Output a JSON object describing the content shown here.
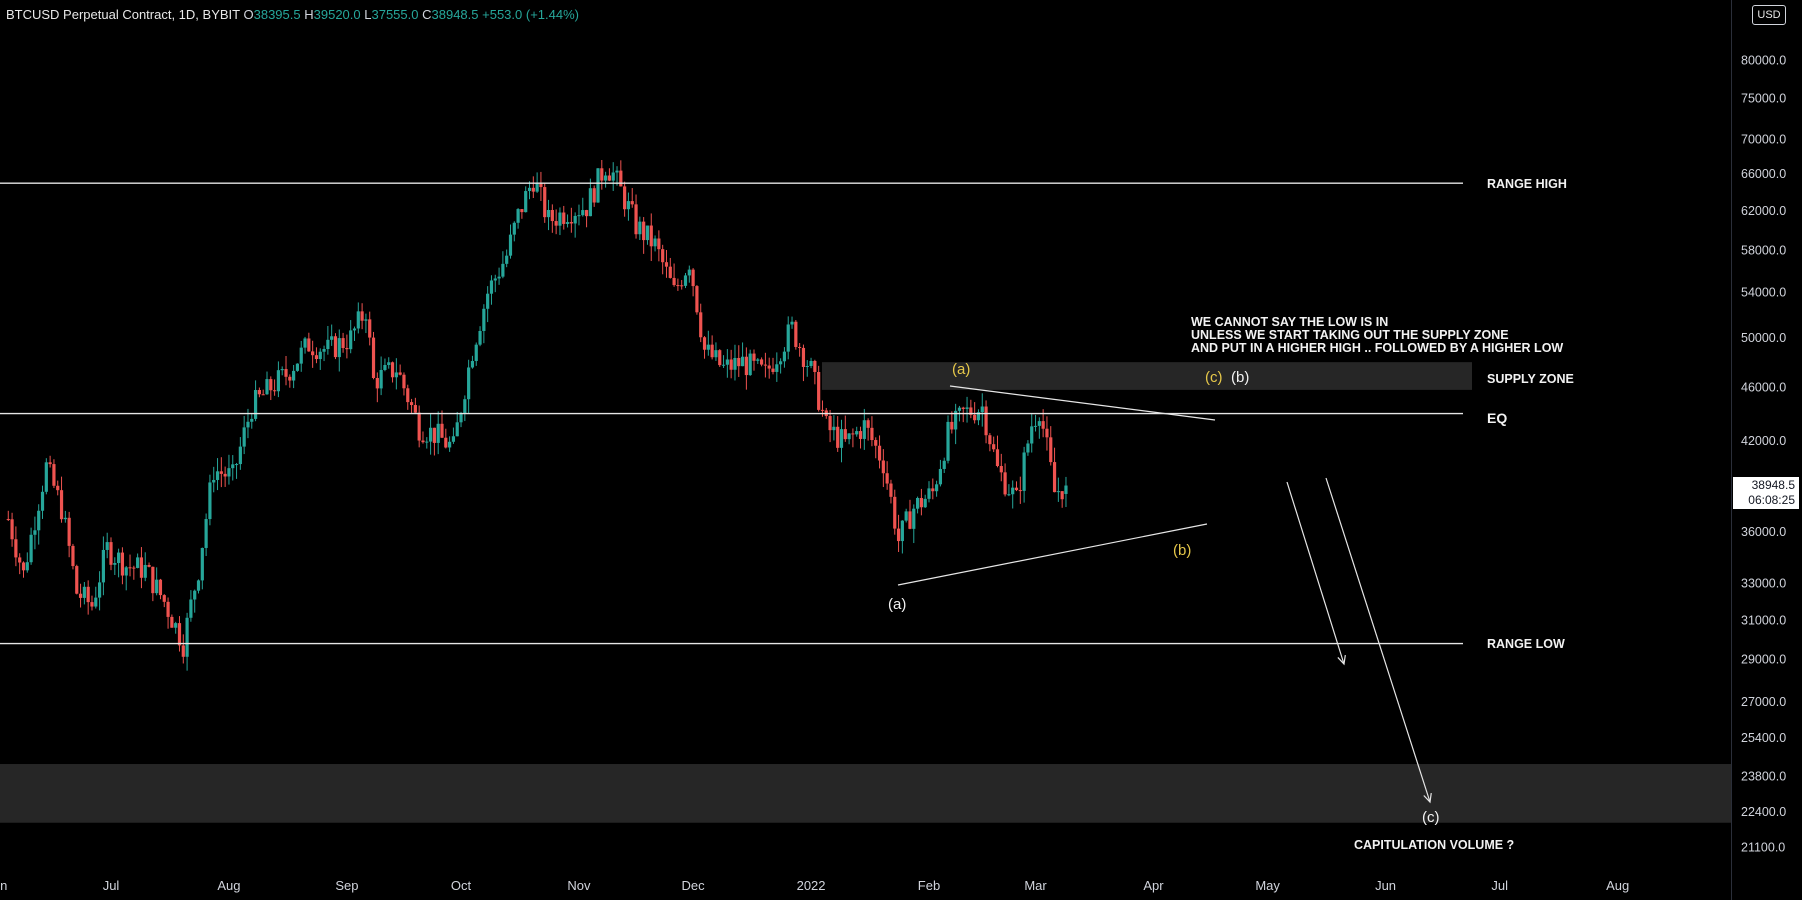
{
  "header": {
    "symbol": "BTCUSD Perpetual Contract, 1D, BYBIT",
    "o_label": "O",
    "o_value": "38395.5",
    "h_label": "H",
    "h_value": "39520.0",
    "l_label": "L",
    "l_value": "37555.0",
    "c_label": "C",
    "c_value": "38948.5",
    "change": "+553.0 (+1.44%)"
  },
  "currency_button": "USD",
  "price_tag": {
    "price": "38948.5",
    "countdown": "06:08:25"
  },
  "colors": {
    "up": "#26a69a",
    "down": "#ef5350",
    "line": "#e6e6e6",
    "zone": "#262626",
    "yellow": "#e6c84a"
  },
  "annotations": {
    "range_high": "RANGE HIGH",
    "supply_zone": "SUPPLY ZONE",
    "eq": "EQ",
    "range_low": "RANGE LOW",
    "capitulation": "CAPITULATION VOLUME ?",
    "note_line1": "WE CANNOT SAY THE LOW IS IN",
    "note_line2": "UNLESS WE START TAKING OUT THE SUPPLY ZONE",
    "note_line3": "AND PUT IN A HIGHER HIGH .. FOLLOWED BY A HIGHER LOW",
    "wave_a_yellow": "(a)",
    "wave_c_yellow": "(c)",
    "wave_b_white": "(b)",
    "wave_b_yellow": "(b)",
    "wave_a_white": "(a)",
    "wave_c_white": "(c)"
  },
  "chart_data": {
    "type": "candlestick",
    "title": "BTCUSD Perpetual Contract, 1D, BYBIT",
    "y_ticks": [
      80000,
      75000,
      70000,
      66000,
      62000,
      58000,
      54000,
      50000,
      46000,
      42000,
      36000,
      33000,
      31000,
      29000,
      27000,
      25400,
      23800,
      22400,
      21100
    ],
    "y_tick_labels": [
      "80000.0",
      "75000.0",
      "70000.0",
      "66000.0",
      "62000.0",
      "58000.0",
      "54000.0",
      "50000.0",
      "46000.0",
      "42000.0",
      "36000.0",
      "33000.0",
      "31000.0",
      "29000.0",
      "27000.0",
      "25400.0",
      "23800.0",
      "22400.0",
      "21100.0"
    ],
    "x_ticks": [
      "Jun",
      "Jul",
      "Aug",
      "Sep",
      "Oct",
      "Nov",
      "Dec",
      "2022",
      "Feb",
      "Mar",
      "Apr",
      "May",
      "Jun",
      "Jul",
      "Aug"
    ],
    "scale": "log",
    "levels": {
      "range_high": 65000,
      "eq": 44000,
      "range_low": 29800
    },
    "supply_zone": [
      45800,
      48000
    ],
    "capitulation_zone": [
      22000,
      24300
    ],
    "close_series": [
      [
        "2021-06-04",
        36800
      ],
      [
        "2021-06-08",
        33500
      ],
      [
        "2021-06-14",
        40200
      ],
      [
        "2021-06-18",
        37500
      ],
      [
        "2021-06-22",
        32500
      ],
      [
        "2021-06-26",
        31800
      ],
      [
        "2021-06-30",
        35000
      ],
      [
        "2021-07-05",
        34000
      ],
      [
        "2021-07-10",
        33800
      ],
      [
        "2021-07-15",
        32000
      ],
      [
        "2021-07-20",
        29800
      ],
      [
        "2021-07-24",
        33800
      ],
      [
        "2021-07-28",
        40000
      ],
      [
        "2021-08-02",
        39500
      ],
      [
        "2021-08-07",
        44500
      ],
      [
        "2021-08-12",
        46000
      ],
      [
        "2021-08-16",
        47000
      ],
      [
        "2021-08-22",
        49500
      ],
      [
        "2021-08-27",
        49000
      ],
      [
        "2021-09-02",
        50000
      ],
      [
        "2021-09-06",
        52500
      ],
      [
        "2021-09-08",
        46500
      ],
      [
        "2021-09-14",
        47500
      ],
      [
        "2021-09-20",
        43000
      ],
      [
        "2021-09-24",
        42500
      ],
      [
        "2021-09-29",
        41500
      ],
      [
        "2021-10-04",
        49000
      ],
      [
        "2021-10-08",
        54000
      ],
      [
        "2021-10-13",
        57500
      ],
      [
        "2021-10-16",
        61500
      ],
      [
        "2021-10-20",
        65500
      ],
      [
        "2021-10-24",
        61000
      ],
      [
        "2021-10-29",
        62000
      ],
      [
        "2021-11-03",
        62500
      ],
      [
        "2021-11-08",
        67000
      ],
      [
        "2021-11-10",
        66000
      ],
      [
        "2021-11-16",
        60500
      ],
      [
        "2021-11-21",
        58500
      ],
      [
        "2021-11-26",
        54000
      ],
      [
        "2021-11-30",
        57000
      ],
      [
        "2021-12-04",
        49000
      ],
      [
        "2021-12-09",
        47500
      ],
      [
        "2021-12-14",
        48000
      ],
      [
        "2021-12-20",
        47000
      ],
      [
        "2021-12-27",
        50800
      ],
      [
        "2022-01-01",
        47300
      ],
      [
        "2022-01-05",
        43000
      ],
      [
        "2022-01-10",
        41800
      ],
      [
        "2022-01-15",
        43100
      ],
      [
        "2022-01-20",
        40500
      ],
      [
        "2022-01-24",
        35500
      ],
      [
        "2022-01-28",
        37500
      ],
      [
        "2022-02-02",
        38500
      ],
      [
        "2022-02-06",
        42500
      ],
      [
        "2022-02-10",
        44000
      ],
      [
        "2022-02-15",
        44500
      ],
      [
        "2022-02-19",
        40000
      ],
      [
        "2022-02-24",
        38000
      ],
      [
        "2022-02-28",
        43200
      ],
      [
        "2022-03-02",
        44400
      ],
      [
        "2022-03-06",
        38500
      ],
      [
        "2022-03-09",
        38948.5
      ]
    ]
  }
}
